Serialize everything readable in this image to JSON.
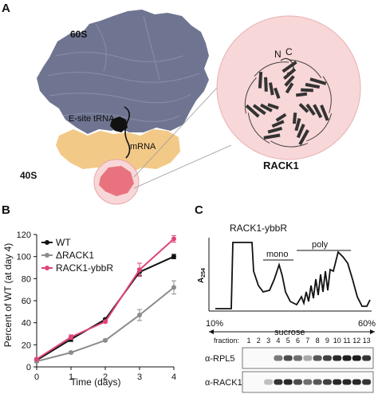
{
  "panels": {
    "a": {
      "letter": "A",
      "labels": {
        "large_subunit": "60S",
        "small_subunit": "40S",
        "trna": "E-site tRNA",
        "mrna": "mRNA",
        "zoom_title": "RACK1",
        "n_term": "N",
        "c_term": "C"
      },
      "colors": {
        "large_subunit": "#6f7591",
        "small_subunit": "#f3c987",
        "rack1": "#e8737e",
        "zoom_bg": "#f8d7d8"
      }
    },
    "b": {
      "letter": "B",
      "chart_data": {
        "type": "line",
        "xlabel": "Time (days)",
        "ylabel": "Percent of WT (at day 4)",
        "x": [
          0,
          1,
          2,
          3,
          4
        ],
        "xlim": [
          0,
          4
        ],
        "ylim": [
          0,
          120
        ],
        "yticks": [
          0,
          20,
          40,
          60,
          80,
          100,
          120
        ],
        "legend_position": "top-left",
        "series": [
          {
            "name": "WT",
            "color": "#111111",
            "values": [
              6,
              25,
              43,
              86,
              100
            ],
            "errors": [
              1,
              2,
              1,
              3,
              2
            ]
          },
          {
            "name": "ΔRACK1",
            "color": "#8c8c8c",
            "values": [
              5,
              13,
              24,
              47,
              72
            ],
            "errors": [
              1,
              1,
              1,
              5,
              6
            ]
          },
          {
            "name": "RACK1-ybbR",
            "color": "#e0447a",
            "values": [
              7,
              27,
              41,
              88,
              116
            ],
            "errors": [
              1,
              2,
              1,
              6,
              3
            ]
          }
        ]
      }
    },
    "c": {
      "letter": "C",
      "title": "RACK1-ybbR",
      "y_label": "A",
      "y_label_sub": "254",
      "peaks": {
        "mono": "mono",
        "poly": "poly"
      },
      "gradient": {
        "low": "10%",
        "label": "sucrose",
        "high": "60%"
      },
      "fraction_label": "fraction:",
      "fractions": [
        "1",
        "2",
        "3",
        "4",
        "5",
        "6",
        "7",
        "8",
        "9",
        "10",
        "11",
        "12",
        "13"
      ],
      "blots": [
        {
          "label": "α-RPL5",
          "intensity": [
            0,
            0,
            0,
            0.55,
            0.75,
            0.6,
            0.35,
            0.7,
            0.8,
            0.9,
            0.95,
            0.95,
            0.85
          ]
        },
        {
          "label": "α-RACK1",
          "intensity": [
            0,
            0,
            0.25,
            0.85,
            0.9,
            0.75,
            0.6,
            0.7,
            0.8,
            0.9,
            0.9,
            0.9,
            0.85
          ]
        }
      ]
    }
  }
}
